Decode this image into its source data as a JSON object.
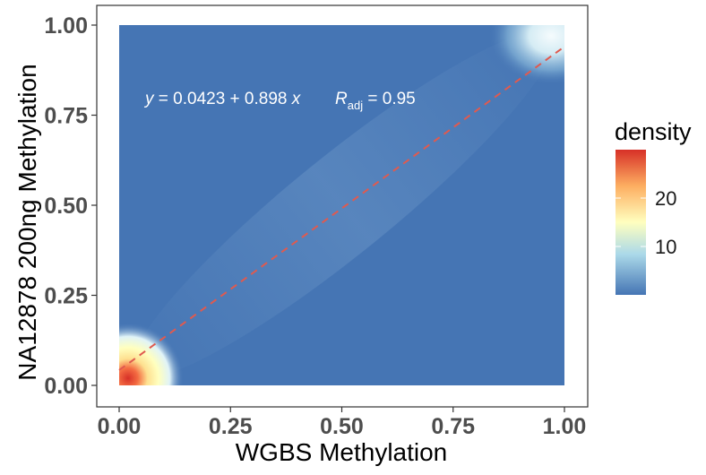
{
  "chart_data": {
    "type": "heatmap",
    "title": "",
    "xlabel": "WGBS Methylation",
    "ylabel": "NA12878 200ng Methylation",
    "xlim": [
      0,
      1
    ],
    "ylim": [
      0,
      1
    ],
    "x_ticks": [
      0,
      0.25,
      0.5,
      0.75,
      1.0
    ],
    "y_ticks": [
      0,
      0.25,
      0.5,
      0.75,
      1.0
    ],
    "x_tick_labels": [
      "0.00",
      "0.25",
      "0.50",
      "0.75",
      "1.00"
    ],
    "y_tick_labels": [
      "0.00",
      "0.25",
      "0.50",
      "0.75",
      "1.00"
    ],
    "grid": false,
    "density_peaks": [
      {
        "x": 0.02,
        "y": 0.02,
        "density": 30
      },
      {
        "x": 0.97,
        "y": 0.97,
        "density": 12
      }
    ],
    "fit_line": {
      "intercept": 0.0423,
      "slope": 0.898,
      "r_adj": 0.95,
      "style": "dashed",
      "color": "#e05a4f"
    },
    "annotation": {
      "equation_prefix": "y",
      "equation_body": " = 0.0423 + 0.898 ",
      "equation_suffix": "x",
      "r_symbol": "R",
      "r_subscript": "adj",
      "r_value": " = 0.95"
    },
    "legend": {
      "title": "density",
      "position": "right",
      "ticks": [
        10,
        20
      ],
      "tick_labels": [
        "10",
        "20"
      ],
      "range": [
        0,
        30
      ],
      "colors": [
        "#4575b4",
        "#abd9e9",
        "#ffffbf",
        "#fdae61",
        "#d73027"
      ]
    }
  }
}
